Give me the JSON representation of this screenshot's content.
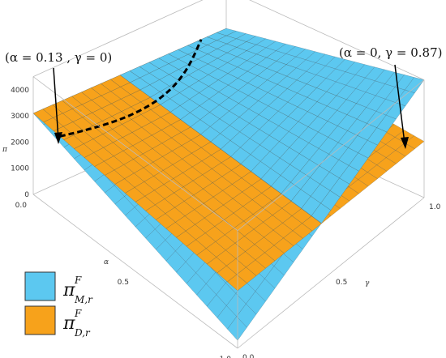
{
  "chart_data": {
    "type": "surface3d",
    "x_axis": {
      "label": "α",
      "range": [
        0,
        1
      ],
      "ticks": [
        "0.0",
        "0.5",
        "1.0"
      ]
    },
    "y_axis": {
      "label": "γ",
      "range": [
        0,
        1
      ],
      "ticks": [
        "0.0",
        "0.5",
        "1.0"
      ]
    },
    "z_axis": {
      "label": "π",
      "range": [
        0,
        4500
      ],
      "ticks": [
        "0",
        "1000",
        "2000",
        "3000",
        "4000"
      ]
    },
    "series": [
      {
        "legend_symbol": "π",
        "legend_sup": "F",
        "legend_sub": "M,r",
        "color": "#5cc8f0",
        "corner_values": {
          "a0_g0": 3100,
          "a1_g0": 300,
          "a0_g1": 3000,
          "a1_g1": 4500
        }
      },
      {
        "legend_symbol": "π",
        "legend_sup": "F",
        "legend_sub": "D,r",
        "color": "#f7a21b",
        "corner_values": {
          "a0_g0": 3100,
          "a1_g0": 2200,
          "a0_g1": 3000,
          "a1_g1": 2150
        }
      }
    ],
    "intersection_curve": {
      "style": "dashed",
      "color": "#000000"
    },
    "annotations": [
      {
        "text": "(α = 0.13 ,  γ = 0)",
        "alpha": 0.13,
        "gamma": 0
      },
      {
        "text": "(α = 0,  γ = 0.87)",
        "alpha": 0,
        "gamma": 0.87
      }
    ],
    "legend_position": "bottom-left"
  }
}
